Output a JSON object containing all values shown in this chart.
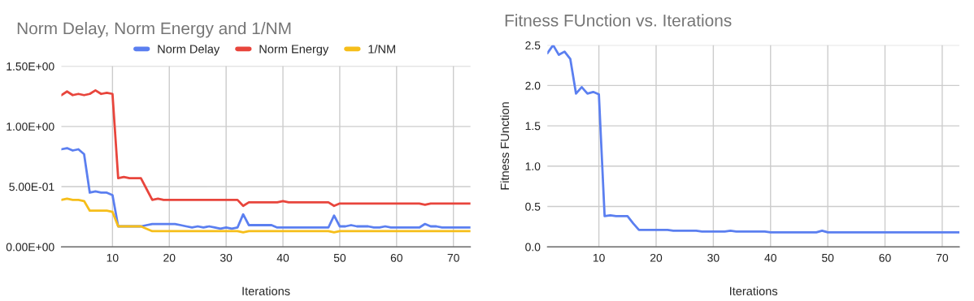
{
  "chart_data": [
    {
      "type": "line",
      "title": "Norm Delay, Norm Energy and 1/NM",
      "xlabel": "Iterations",
      "x": [
        1,
        2,
        3,
        4,
        5,
        6,
        7,
        8,
        9,
        10,
        11,
        12,
        13,
        14,
        15,
        16,
        17,
        18,
        19,
        20,
        21,
        22,
        23,
        24,
        25,
        26,
        27,
        28,
        29,
        30,
        31,
        32,
        33,
        34,
        35,
        36,
        37,
        38,
        39,
        40,
        41,
        42,
        43,
        44,
        45,
        46,
        47,
        48,
        49,
        50,
        51,
        52,
        53,
        54,
        55,
        56,
        57,
        58,
        59,
        60,
        61,
        62,
        63,
        64,
        65,
        66,
        67,
        68,
        69,
        70,
        71,
        72,
        73
      ],
      "series": [
        {
          "name": "Norm Delay",
          "color": "#5b7ff0",
          "values": [
            0.81,
            0.82,
            0.8,
            0.81,
            0.77,
            0.45,
            0.46,
            0.45,
            0.45,
            0.43,
            0.17,
            0.17,
            0.17,
            0.17,
            0.17,
            0.18,
            0.19,
            0.19,
            0.19,
            0.19,
            0.19,
            0.18,
            0.17,
            0.16,
            0.17,
            0.16,
            0.17,
            0.16,
            0.15,
            0.16,
            0.15,
            0.16,
            0.27,
            0.18,
            0.18,
            0.18,
            0.18,
            0.18,
            0.16,
            0.16,
            0.16,
            0.16,
            0.16,
            0.16,
            0.16,
            0.16,
            0.16,
            0.16,
            0.26,
            0.17,
            0.17,
            0.18,
            0.17,
            0.17,
            0.17,
            0.16,
            0.16,
            0.17,
            0.16,
            0.16,
            0.16,
            0.16,
            0.16,
            0.16,
            0.19,
            0.17,
            0.17,
            0.16,
            0.16,
            0.16,
            0.16,
            0.16,
            0.16
          ]
        },
        {
          "name": "Norm Energy",
          "color": "#e8453c",
          "values": [
            1.26,
            1.29,
            1.26,
            1.27,
            1.26,
            1.27,
            1.3,
            1.27,
            1.28,
            1.27,
            0.57,
            0.58,
            0.57,
            0.57,
            0.57,
            0.48,
            0.39,
            0.4,
            0.39,
            0.39,
            0.39,
            0.39,
            0.39,
            0.39,
            0.39,
            0.39,
            0.39,
            0.39,
            0.39,
            0.39,
            0.39,
            0.39,
            0.34,
            0.37,
            0.37,
            0.37,
            0.37,
            0.37,
            0.37,
            0.38,
            0.37,
            0.37,
            0.37,
            0.37,
            0.37,
            0.37,
            0.37,
            0.37,
            0.34,
            0.36,
            0.36,
            0.36,
            0.36,
            0.36,
            0.36,
            0.36,
            0.36,
            0.36,
            0.36,
            0.36,
            0.36,
            0.36,
            0.36,
            0.36,
            0.35,
            0.36,
            0.36,
            0.36,
            0.36,
            0.36,
            0.36,
            0.36,
            0.36
          ]
        },
        {
          "name": "1/NM",
          "color": "#f6be1a",
          "values": [
            0.39,
            0.4,
            0.39,
            0.39,
            0.38,
            0.3,
            0.3,
            0.3,
            0.3,
            0.29,
            0.17,
            0.17,
            0.17,
            0.17,
            0.17,
            0.15,
            0.13,
            0.13,
            0.13,
            0.13,
            0.13,
            0.13,
            0.13,
            0.13,
            0.13,
            0.13,
            0.13,
            0.13,
            0.13,
            0.13,
            0.13,
            0.13,
            0.12,
            0.13,
            0.13,
            0.13,
            0.13,
            0.13,
            0.13,
            0.13,
            0.13,
            0.13,
            0.13,
            0.13,
            0.13,
            0.13,
            0.13,
            0.13,
            0.12,
            0.13,
            0.13,
            0.13,
            0.13,
            0.13,
            0.13,
            0.13,
            0.13,
            0.13,
            0.13,
            0.13,
            0.13,
            0.13,
            0.13,
            0.13,
            0.13,
            0.13,
            0.13,
            0.13,
            0.13,
            0.13,
            0.13,
            0.13,
            0.13
          ]
        }
      ],
      "xlim": [
        1,
        73
      ],
      "xticks": [
        10,
        20,
        30,
        40,
        50,
        60,
        70
      ],
      "ylim": [
        0,
        1.5
      ],
      "yticks": [
        {
          "value": 0,
          "label": "0.00E+00"
        },
        {
          "value": 0.5,
          "label": "5.00E-01"
        },
        {
          "value": 1.0,
          "label": "1.00E+00"
        },
        {
          "value": 1.5,
          "label": "1.50E+00"
        }
      ],
      "grid": true,
      "legend": "top",
      "marker": "none",
      "line_style": "solid"
    },
    {
      "type": "line",
      "title": "Fitness FUnction vs. Iterations",
      "xlabel": "Iterations",
      "ylabel": "Fitness FUnction",
      "x": [
        1,
        2,
        3,
        4,
        5,
        6,
        7,
        8,
        9,
        10,
        11,
        12,
        13,
        14,
        15,
        16,
        17,
        18,
        19,
        20,
        21,
        22,
        23,
        24,
        25,
        26,
        27,
        28,
        29,
        30,
        31,
        32,
        33,
        34,
        35,
        36,
        37,
        38,
        39,
        40,
        41,
        42,
        43,
        44,
        45,
        46,
        47,
        48,
        49,
        50,
        51,
        52,
        53,
        54,
        55,
        56,
        57,
        58,
        59,
        60,
        61,
        62,
        63,
        64,
        65,
        66,
        67,
        68,
        69,
        70,
        71,
        72,
        73
      ],
      "series": [
        {
          "color": "#5b7ff0",
          "values": [
            2.4,
            2.5,
            2.38,
            2.42,
            2.33,
            1.9,
            1.98,
            1.9,
            1.92,
            1.89,
            0.38,
            0.39,
            0.38,
            0.38,
            0.38,
            0.29,
            0.21,
            0.21,
            0.21,
            0.21,
            0.21,
            0.21,
            0.2,
            0.2,
            0.2,
            0.2,
            0.2,
            0.19,
            0.19,
            0.19,
            0.19,
            0.19,
            0.2,
            0.19,
            0.19,
            0.19,
            0.19,
            0.19,
            0.19,
            0.18,
            0.18,
            0.18,
            0.18,
            0.18,
            0.18,
            0.18,
            0.18,
            0.18,
            0.2,
            0.18,
            0.18,
            0.18,
            0.18,
            0.18,
            0.18,
            0.18,
            0.18,
            0.18,
            0.18,
            0.18,
            0.18,
            0.18,
            0.18,
            0.18,
            0.18,
            0.18,
            0.18,
            0.18,
            0.18,
            0.18,
            0.18,
            0.18,
            0.18
          ]
        }
      ],
      "xlim": [
        1,
        73
      ],
      "xticks": [
        10,
        20,
        30,
        40,
        50,
        60,
        70
      ],
      "ylim": [
        0,
        2.5
      ],
      "yticks": [
        {
          "value": 0,
          "label": "0.0"
        },
        {
          "value": 0.5,
          "label": "0.5"
        },
        {
          "value": 1.0,
          "label": "1.0"
        },
        {
          "value": 1.5,
          "label": "1.5"
        },
        {
          "value": 2.0,
          "label": "2.0"
        },
        {
          "value": 2.5,
          "label": "2.5"
        }
      ],
      "grid": true,
      "marker": "none",
      "line_style": "solid"
    }
  ]
}
